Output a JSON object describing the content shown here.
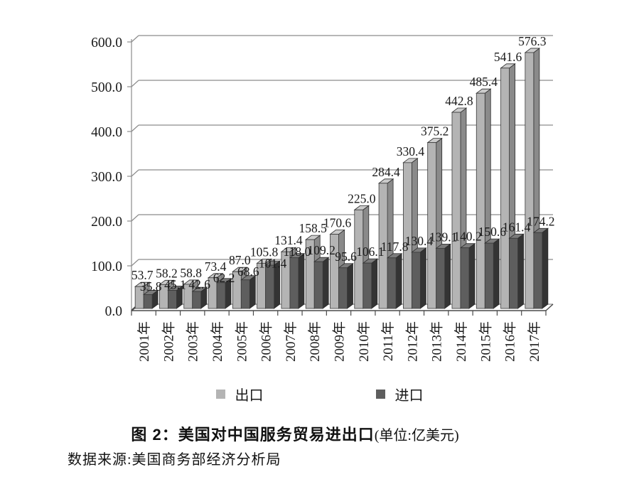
{
  "chart_data": {
    "type": "bar",
    "style": "3d-clustered-column",
    "categories": [
      "2001年",
      "2002年",
      "2003年",
      "2004年",
      "2005年",
      "2006年",
      "2007年",
      "2008年",
      "2009年",
      "2010年",
      "2011年",
      "2012年",
      "2013年",
      "2014年",
      "2015年",
      "2016年",
      "2017年"
    ],
    "series": [
      {
        "name": "出口",
        "values": [
          53.7,
          58.2,
          58.8,
          73.4,
          87.0,
          105.8,
          131.4,
          158.5,
          170.6,
          225.0,
          284.4,
          330.4,
          375.2,
          442.8,
          485.4,
          541.6,
          576.3
        ],
        "color": "#b4b4b4",
        "side_color": "#8a8a8a",
        "top_color": "#cbcbcb"
      },
      {
        "name": "进口",
        "values": [
          35.8,
          45.1,
          42.6,
          62.2,
          68.6,
          101.4,
          118.0,
          109.2,
          95.6,
          106.1,
          117.8,
          130.4,
          139.1,
          140.2,
          150.6,
          161.4,
          174.2
        ],
        "color": "#5e5e5e",
        "side_color": "#343434",
        "top_color": "#7b7b7b"
      }
    ],
    "ylim": [
      0,
      600
    ],
    "ytick_step": 100,
    "ytick_labels": [
      "0.0",
      "100.0",
      "200.0",
      "300.0",
      "400.0",
      "500.0",
      "600.0"
    ],
    "grid": true,
    "data_labels": true,
    "legend_position": "bottom",
    "grid_color": "#8c8c8c",
    "axis_color": "#4a4a4a",
    "label_color": "#1a1a1a"
  },
  "legend": {
    "export_label": "出口",
    "import_label": "进口"
  },
  "caption": {
    "figure_label": "图 2：",
    "title": "美国对中国服务贸易进出口",
    "unit": "(单位:亿美元)"
  },
  "source_note": "数据来源:美国商务部经济分析局"
}
